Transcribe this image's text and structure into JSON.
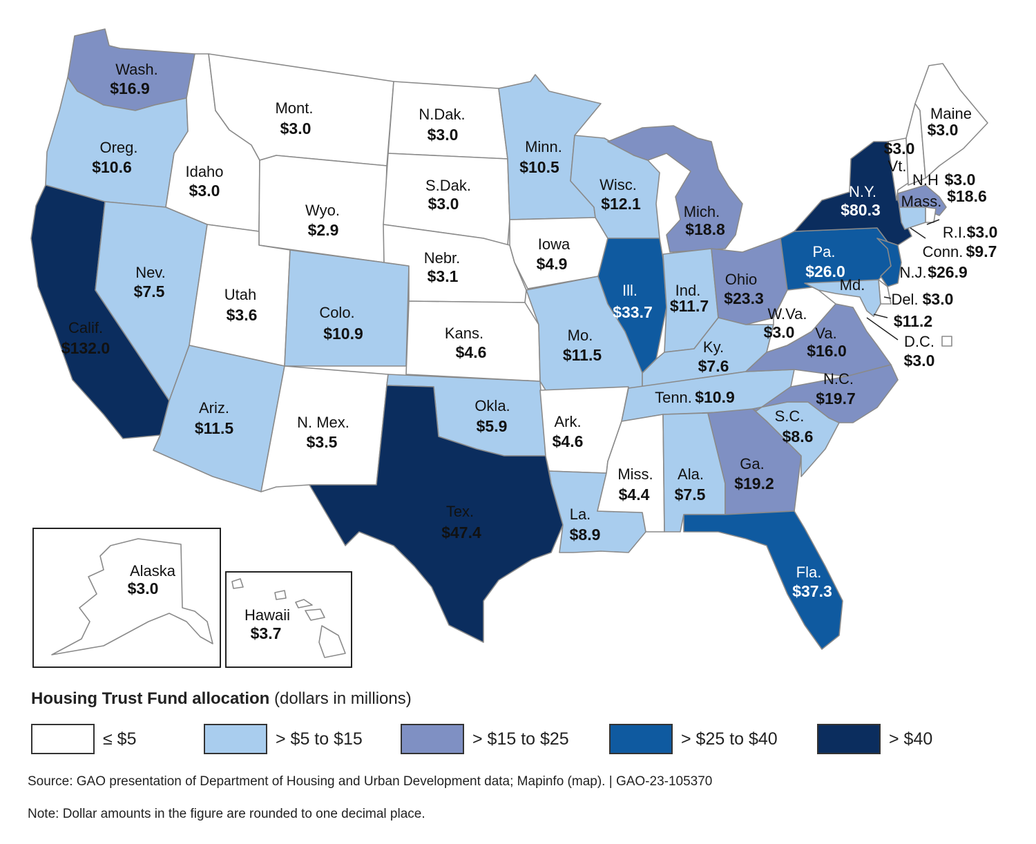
{
  "legend": {
    "title_bold": "Housing Trust Fund allocation",
    "title_rest": "(dollars in millions)",
    "bins": [
      {
        "label": "≤ $5",
        "color": "#ffffff"
      },
      {
        "label": "> $5 to $15",
        "color": "#a9cdee"
      },
      {
        "label": "> $15 to $25",
        "color": "#7f90c3"
      },
      {
        "label": "> $25 to $40",
        "color": "#0f5aa0"
      },
      {
        "label": "> $40",
        "color": "#0b2d5e"
      }
    ]
  },
  "states": [
    {
      "id": "wa",
      "name": "Wash.",
      "value": "$16.9",
      "amount": 16.9
    },
    {
      "id": "or",
      "name": "Oreg.",
      "value": "$10.6",
      "amount": 10.6
    },
    {
      "id": "ca",
      "name": "Calif.",
      "value": "$132.0",
      "amount": 132.0
    },
    {
      "id": "id",
      "name": "Idaho",
      "value": "$3.0",
      "amount": 3.0
    },
    {
      "id": "nv",
      "name": "Nev.",
      "value": "$7.5",
      "amount": 7.5
    },
    {
      "id": "mt",
      "name": "Mont.",
      "value": "$3.0",
      "amount": 3.0
    },
    {
      "id": "wy",
      "name": "Wyo.",
      "value": "$2.9",
      "amount": 2.9
    },
    {
      "id": "ut",
      "name": "Utah",
      "value": "$3.6",
      "amount": 3.6
    },
    {
      "id": "az",
      "name": "Ariz.",
      "value": "$11.5",
      "amount": 11.5
    },
    {
      "id": "co",
      "name": "Colo.",
      "value": "$10.9",
      "amount": 10.9
    },
    {
      "id": "nm",
      "name": "N. Mex.",
      "value": "$3.5",
      "amount": 3.5
    },
    {
      "id": "nd",
      "name": "N.Dak.",
      "value": "$3.0",
      "amount": 3.0
    },
    {
      "id": "sd",
      "name": "S.Dak.",
      "value": "$3.0",
      "amount": 3.0
    },
    {
      "id": "ne",
      "name": "Nebr.",
      "value": "$3.1",
      "amount": 3.1
    },
    {
      "id": "ks",
      "name": "Kans.",
      "value": "$4.6",
      "amount": 4.6
    },
    {
      "id": "ok",
      "name": "Okla.",
      "value": "$5.9",
      "amount": 5.9
    },
    {
      "id": "tx",
      "name": "Tex.",
      "value": "$47.4",
      "amount": 47.4
    },
    {
      "id": "mn",
      "name": "Minn.",
      "value": "$10.5",
      "amount": 10.5
    },
    {
      "id": "ia",
      "name": "Iowa",
      "value": "$4.9",
      "amount": 4.9
    },
    {
      "id": "mo",
      "name": "Mo.",
      "value": "$11.5",
      "amount": 11.5
    },
    {
      "id": "ar",
      "name": "Ark.",
      "value": "$4.6",
      "amount": 4.6
    },
    {
      "id": "la",
      "name": "La.",
      "value": "$8.9",
      "amount": 8.9
    },
    {
      "id": "wi",
      "name": "Wisc.",
      "value": "$12.1",
      "amount": 12.1
    },
    {
      "id": "il",
      "name": "Ill.",
      "value": "$33.7",
      "amount": 33.7
    },
    {
      "id": "mi",
      "name": "Mich.",
      "value": "$18.8",
      "amount": 18.8
    },
    {
      "id": "in",
      "name": "Ind.",
      "value": "$11.7",
      "amount": 11.7
    },
    {
      "id": "oh",
      "name": "Ohio",
      "value": "$23.3",
      "amount": 23.3
    },
    {
      "id": "ky",
      "name": "Ky.",
      "value": "$7.6",
      "amount": 7.6
    },
    {
      "id": "tn",
      "name": "Tenn.",
      "value": "$10.9",
      "amount": 10.9
    },
    {
      "id": "ms",
      "name": "Miss.",
      "value": "$4.4",
      "amount": 4.4
    },
    {
      "id": "al",
      "name": "Ala.",
      "value": "$7.5",
      "amount": 7.5
    },
    {
      "id": "ga",
      "name": "Ga.",
      "value": "$19.2",
      "amount": 19.2
    },
    {
      "id": "fl",
      "name": "Fla.",
      "value": "$37.3",
      "amount": 37.3
    },
    {
      "id": "sc",
      "name": "S.C.",
      "value": "$8.6",
      "amount": 8.6
    },
    {
      "id": "nc",
      "name": "N.C.",
      "value": "$19.7",
      "amount": 19.7
    },
    {
      "id": "va",
      "name": "Va.",
      "value": "$16.0",
      "amount": 16.0
    },
    {
      "id": "wv",
      "name": "W.Va.",
      "value": "$3.0",
      "amount": 3.0
    },
    {
      "id": "pa",
      "name": "Pa.",
      "value": "$26.0",
      "amount": 26.0
    },
    {
      "id": "ny",
      "name": "N.Y.",
      "value": "$80.3",
      "amount": 80.3
    },
    {
      "id": "me",
      "name": "Maine",
      "value": "$3.0",
      "amount": 3.0
    },
    {
      "id": "vt",
      "name": "Vt.",
      "value": "$3.0",
      "amount": 3.0
    },
    {
      "id": "nh",
      "name": "N.H",
      "value": "$3.0",
      "amount": 3.0
    },
    {
      "id": "ma",
      "name": "Mass.",
      "value": "$18.6",
      "amount": 18.6
    },
    {
      "id": "ri",
      "name": "R.I.",
      "value": "$3.0",
      "amount": 3.0
    },
    {
      "id": "ct",
      "name": "Conn.",
      "value": "$9.7",
      "amount": 9.7
    },
    {
      "id": "nj",
      "name": "N.J.",
      "value": "$26.9",
      "amount": 26.9
    },
    {
      "id": "de",
      "name": "Del.",
      "value": "$3.0",
      "amount": 3.0
    },
    {
      "id": "md",
      "name": "Md.",
      "value": "$11.2",
      "amount": 11.2
    },
    {
      "id": "dc",
      "name": "D.C.",
      "value": "$3.0",
      "amount": 3.0
    },
    {
      "id": "ak",
      "name": "Alaska",
      "value": "$3.0",
      "amount": 3.0
    },
    {
      "id": "hi",
      "name": "Hawaii",
      "value": "$3.7",
      "amount": 3.7
    }
  ],
  "source": "Source: GAO presentation of Department of Housing and Urban Development data; Mapinfo (map).  |  GAO-23-105370",
  "note": "Note: Dollar amounts in the figure are rounded to one decimal place."
}
